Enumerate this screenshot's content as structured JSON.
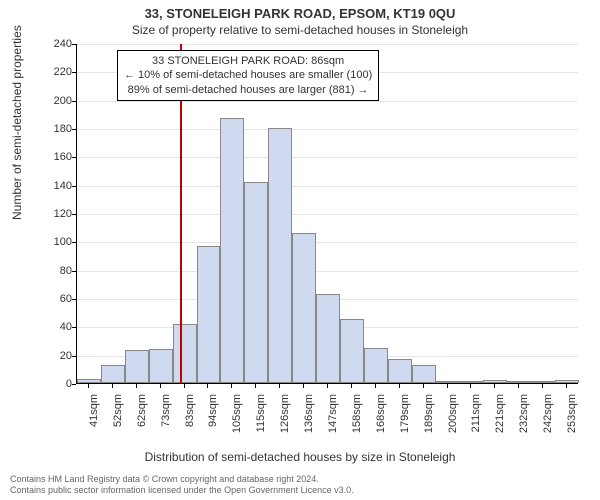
{
  "title_main": "33, STONELEIGH PARK ROAD, EPSOM, KT19 0QU",
  "title_sub": "Size of property relative to semi-detached houses in Stoneleigh",
  "y_label": "Number of semi-detached properties",
  "x_label": "Distribution of semi-detached houses by size in Stoneleigh",
  "footer_line1": "Contains HM Land Registry data © Crown copyright and database right 2024.",
  "footer_line2": "Contains public sector information licensed under the Open Government Licence v3.0.",
  "annotation": {
    "line1": "33 STONELEIGH PARK ROAD: 86sqm",
    "line2": "← 10% of semi-detached houses are smaller (100)",
    "line3": "89% of semi-detached houses are larger (881) →"
  },
  "chart": {
    "type": "histogram",
    "ylim": [
      0,
      240
    ],
    "ytick_step": 20,
    "bar_fill": "#cfd9ef",
    "bar_border": "#888888",
    "grid_color": "#e5e5e5",
    "background_color": "#ffffff",
    "axis_color": "#000000",
    "marker_color": "#c00000",
    "marker_x_index": 4.3,
    "title_fontsize": 13,
    "label_fontsize": 12,
    "tick_fontsize": 11,
    "annotation_fontsize": 11,
    "x_labels": [
      "41sqm",
      "52sqm",
      "62sqm",
      "73sqm",
      "83sqm",
      "94sqm",
      "105sqm",
      "115sqm",
      "126sqm",
      "136sqm",
      "147sqm",
      "158sqm",
      "168sqm",
      "179sqm",
      "189sqm",
      "200sqm",
      "211sqm",
      "221sqm",
      "232sqm",
      "242sqm",
      "253sqm"
    ],
    "values": [
      3,
      13,
      23,
      24,
      42,
      97,
      187,
      142,
      180,
      106,
      63,
      45,
      25,
      17,
      13,
      1,
      1,
      2,
      0,
      1,
      2
    ]
  }
}
